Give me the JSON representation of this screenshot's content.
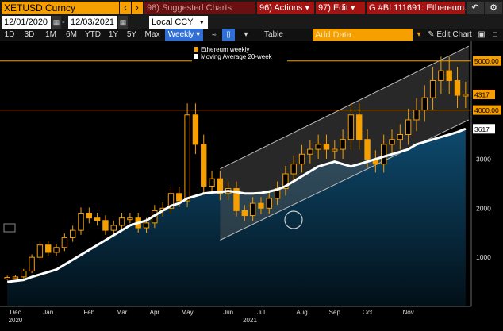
{
  "toolbar": {
    "ticker": "XETUSD Curncy",
    "suggested": "98) Suggested Charts",
    "actions": "96) Actions",
    "edit": "97) Edit",
    "title": "G #BI 111691: Ethereum...",
    "start_date": "12/01/2020",
    "end_date": "12/03/2021",
    "currency": "Local CCY",
    "ranges": [
      "1D",
      "3D",
      "1M",
      "6M",
      "YTD",
      "1Y",
      "5Y",
      "Max"
    ],
    "period": "Weekly",
    "table_label": "Table",
    "add_data_placeholder": "Add Data",
    "edit_chart": "Edit Chart"
  },
  "colors": {
    "candle": "#f59f00",
    "ma_line": "#ffffff",
    "area": "#0b3552",
    "channel_fill": "#4a4a4a"
  },
  "chart_data": {
    "type": "line",
    "series": [
      {
        "name": "Ethereum weekly",
        "color": "#f59f00",
        "values": [
          590,
          600,
          720,
          1000,
          1250,
          1100,
          1200,
          1400,
          1550,
          1900,
          1800,
          1750,
          1550,
          1650,
          1800,
          1800,
          1600,
          1700,
          1950,
          2000,
          2300,
          2150,
          3900,
          3300,
          2450,
          2600,
          2300,
          2400,
          1950,
          1850,
          2100,
          2000,
          2200,
          2400,
          2700,
          2900,
          3100,
          3200,
          3300,
          3200,
          3200,
          3400,
          3900,
          3400,
          3000,
          2900,
          3300,
          3400,
          3500,
          3800,
          4000,
          4250,
          4600,
          4800,
          4600,
          4300,
          4317
        ]
      },
      {
        "name": "Moving Average 20-week",
        "color": "#ffffff",
        "values": [
          500,
          520,
          540,
          600,
          650,
          700,
          750,
          850,
          950,
          1050,
          1150,
          1250,
          1350,
          1450,
          1550,
          1650,
          1700,
          1750,
          1850,
          1950,
          2050,
          2100,
          2200,
          2250,
          2300,
          2320,
          2330,
          2350,
          2330,
          2300,
          2300,
          2310,
          2340,
          2380,
          2450,
          2550,
          2650,
          2750,
          2850,
          2900,
          2950,
          2900,
          2850,
          2900,
          2950,
          3000,
          3050,
          3100,
          3150,
          3200,
          3300,
          3350,
          3400,
          3450,
          3500,
          3550,
          3617
        ]
      }
    ],
    "x_labels": [
      "Dec",
      "Jan",
      "Feb",
      "Mar",
      "Apr",
      "May",
      "Jun",
      "Jul",
      "Aug",
      "Sep",
      "Oct",
      "Nov"
    ],
    "year_labels": [
      "2020",
      "2021"
    ],
    "y_ticks": [
      1000,
      2000,
      3000
    ],
    "ylim": [
      0,
      5400
    ],
    "reference_lines": [
      {
        "value": 5000,
        "label": "5000.00"
      },
      {
        "value": 4000,
        "label": "4000.00"
      }
    ],
    "last_price_label": "4317",
    "last_ma_label": "3617",
    "legend_position": "top-left"
  }
}
